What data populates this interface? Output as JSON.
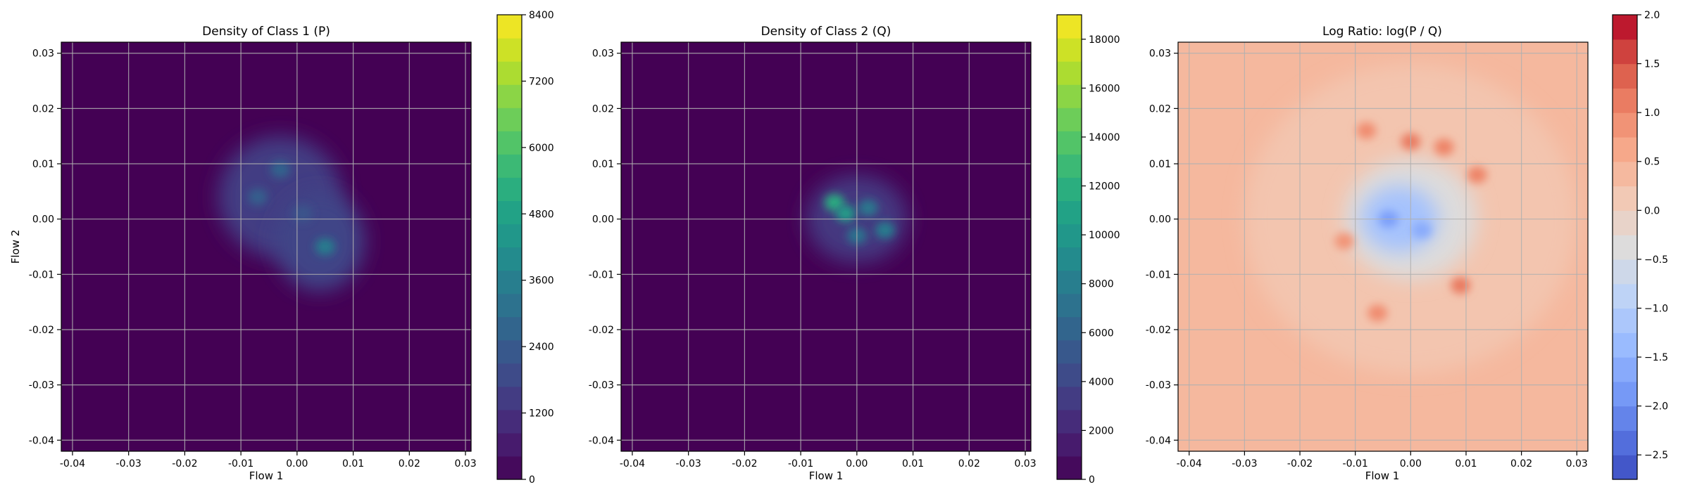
{
  "chart_data": [
    {
      "type": "heatmap",
      "title": "Density of Class 1 (P)",
      "xlabel": "Flow 1",
      "ylabel": "Flow 2",
      "xlim": [
        -0.042,
        0.031
      ],
      "ylim": [
        -0.042,
        0.032
      ],
      "x_ticks": [
        "-0.04",
        "-0.03",
        "-0.02",
        "-0.01",
        "0.00",
        "0.01",
        "0.02",
        "0.03"
      ],
      "y_ticks": [
        "0.03",
        "0.02",
        "0.01",
        "0.00",
        "-0.01",
        "-0.02",
        "-0.03",
        "-0.04"
      ],
      "colormap": "viridis",
      "colorbar": {
        "min": 0,
        "max": 8400,
        "ticks": [
          "0",
          "1200",
          "2400",
          "3600",
          "4800",
          "6000",
          "7200",
          "8400"
        ]
      },
      "grid": true,
      "hotspots": [
        {
          "x": -0.003,
          "y": 0.004,
          "rx": 0.011,
          "ry": 0.011,
          "level": 0.18
        },
        {
          "x": 0.004,
          "y": -0.004,
          "rx": 0.008,
          "ry": 0.009,
          "level": 0.2
        },
        {
          "x": -0.003,
          "y": 0.009,
          "level": 0.32
        },
        {
          "x": -0.007,
          "y": 0.004,
          "level": 0.3
        },
        {
          "x": 0.005,
          "y": -0.005,
          "level": 0.42
        },
        {
          "x": 0.001,
          "y": 0.001,
          "level": 0.26
        }
      ]
    },
    {
      "type": "heatmap",
      "title": "Density of Class 2 (Q)",
      "xlabel": "Flow 1",
      "ylabel": "",
      "xlim": [
        -0.042,
        0.031
      ],
      "ylim": [
        -0.042,
        0.032
      ],
      "x_ticks": [
        "-0.04",
        "-0.03",
        "-0.02",
        "-0.01",
        "0.00",
        "0.01",
        "0.02",
        "0.03"
      ],
      "y_ticks": [
        "0.03",
        "0.02",
        "0.01",
        "0.00",
        "-0.01",
        "-0.02",
        "-0.03",
        "-0.04"
      ],
      "colormap": "viridis",
      "colorbar": {
        "min": 0,
        "max": 19000,
        "ticks": [
          "0",
          "2000",
          "4000",
          "6000",
          "8000",
          "10000",
          "12000",
          "14000",
          "16000",
          "18000"
        ]
      },
      "grid": true,
      "hotspots": [
        {
          "x": 0.0,
          "y": 0.0,
          "rx": 0.009,
          "ry": 0.008,
          "level": 0.16
        },
        {
          "x": -0.004,
          "y": 0.003,
          "level": 0.62
        },
        {
          "x": -0.002,
          "y": 0.001,
          "level": 0.55
        },
        {
          "x": 0.002,
          "y": 0.002,
          "level": 0.4
        },
        {
          "x": 0.005,
          "y": -0.002,
          "level": 0.42
        },
        {
          "x": 0.0,
          "y": -0.003,
          "level": 0.38
        }
      ]
    },
    {
      "type": "heatmap",
      "title": "Log Ratio: log(P / Q)",
      "xlabel": "Flow 1",
      "ylabel": "",
      "xlim": [
        -0.042,
        0.032
      ],
      "ylim": [
        -0.042,
        0.032
      ],
      "x_ticks": [
        "-0.04",
        "-0.03",
        "-0.02",
        "-0.01",
        "0.00",
        "0.01",
        "0.02",
        "0.03"
      ],
      "y_ticks": [
        "0.03",
        "0.02",
        "0.01",
        "0.00",
        "-0.01",
        "-0.02",
        "-0.03",
        "-0.04"
      ],
      "colormap": "coolwarm",
      "colorbar": {
        "min": -2.75,
        "max": 2.0,
        "ticks": [
          "2.0",
          "1.5",
          "1.0",
          "0.5",
          "0.0",
          "−0.5",
          "−1.0",
          "−1.5",
          "−2.0",
          "−2.5"
        ]
      },
      "grid": true,
      "hotspots": [
        {
          "x": 0.0,
          "y": 0.0,
          "rx": 0.03,
          "ry": 0.028,
          "level": 0.62
        },
        {
          "x": 0.0,
          "y": 0.0,
          "rx": 0.012,
          "ry": 0.011,
          "level": 0.5
        },
        {
          "x": -0.002,
          "y": 0.0,
          "rx": 0.007,
          "ry": 0.006,
          "level": 0.32
        },
        {
          "x": -0.004,
          "y": 0.0,
          "level": 0.2
        },
        {
          "x": 0.002,
          "y": -0.002,
          "level": 0.24
        },
        {
          "x": 0.0,
          "y": 0.014,
          "level": 0.82
        },
        {
          "x": 0.006,
          "y": 0.013,
          "level": 0.8
        },
        {
          "x": 0.012,
          "y": 0.008,
          "level": 0.8
        },
        {
          "x": 0.009,
          "y": -0.012,
          "level": 0.82
        },
        {
          "x": -0.006,
          "y": -0.017,
          "level": 0.78
        },
        {
          "x": -0.008,
          "y": 0.016,
          "level": 0.78
        },
        {
          "x": -0.012,
          "y": -0.004,
          "level": 0.76
        }
      ]
    }
  ]
}
